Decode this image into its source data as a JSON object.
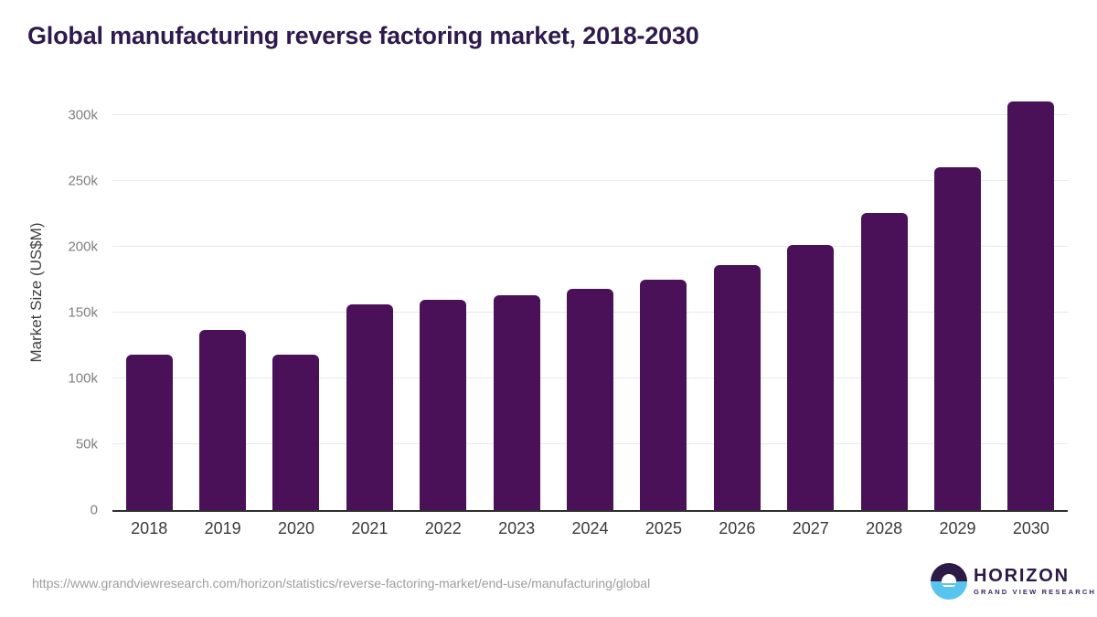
{
  "header": {
    "title": "Global manufacturing reverse factoring market, 2018-2030"
  },
  "colors": {
    "accent": "#4A1158",
    "title": "#2F1A4E",
    "brand-dark": "#2C1A47",
    "brand-blue": "#5AC4F1",
    "grid": "#E9E9E9",
    "axis": "#2E2E2E",
    "tick": "#7F7F7F",
    "label": "#3A3A3A",
    "url": "#9D9D9D"
  },
  "chart_data": {
    "type": "bar",
    "title": "Global manufacturing reverse factoring market, 2018-2030",
    "categories": [
      "2018",
      "2019",
      "2020",
      "2021",
      "2022",
      "2023",
      "2024",
      "2025",
      "2026",
      "2027",
      "2028",
      "2029",
      "2030"
    ],
    "values": [
      118000,
      137000,
      118200,
      156000,
      160000,
      163000,
      168000,
      175000,
      186000,
      201500,
      225500,
      260500,
      310000
    ],
    "xlabel": "",
    "ylabel": "Market Size (US$M)",
    "ylim": [
      0,
      311000
    ],
    "yticks": [
      {
        "value": 0,
        "label": "0"
      },
      {
        "value": 50000,
        "label": "50k"
      },
      {
        "value": 100000,
        "label": "100k"
      },
      {
        "value": 150000,
        "label": "150k"
      },
      {
        "value": 200000,
        "label": "200k"
      },
      {
        "value": 250000,
        "label": "250k"
      },
      {
        "value": 300000,
        "label": "300k"
      }
    ],
    "grid": "horizontal",
    "legend": false,
    "bar_color": "#4A1158"
  },
  "footer": {
    "source_url": "https://www.grandviewresearch.com/horizon/statistics/reverse-factoring-market/end-use/manufacturing/global",
    "logo": {
      "title": "HORIZON",
      "subtitle": "GRAND VIEW RESEARCH"
    }
  }
}
